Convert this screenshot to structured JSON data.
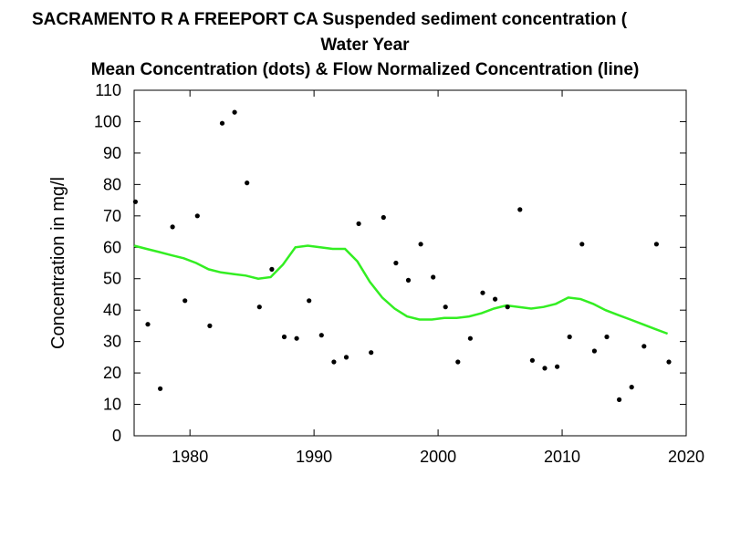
{
  "titles": {
    "line1": "SACRAMENTO R A FREEPORT CA   Suspended sediment concentration (",
    "line2": "Water Year",
    "line3": "Mean Concentration (dots) & Flow Normalized Concentration (line)"
  },
  "colors": {
    "line": "#33ee22",
    "dots": "#000000",
    "axis": "#000000"
  },
  "chart_data": {
    "type": "scatter",
    "title": "SACRAMENTO R A FREEPORT CA   Suspended sediment concentration (",
    "subtitle": "Mean Concentration (dots) & Flow Normalized Concentration (line)",
    "xlabel": "Water Year",
    "ylabel": "Concentration in mg/l",
    "xlim": [
      1975.5,
      2020
    ],
    "ylim": [
      0,
      110
    ],
    "xticks": [
      1980,
      1990,
      2000,
      2010,
      2020
    ],
    "yticks": [
      0,
      10,
      20,
      30,
      40,
      50,
      60,
      70,
      80,
      90,
      100,
      110
    ],
    "grid": false,
    "series": [
      {
        "type": "scatter",
        "x": [
          1975.6,
          1976.6,
          1977.6,
          1978.6,
          1979.6,
          1980.6,
          1981.6,
          1982.6,
          1983.6,
          1984.6,
          1985.6,
          1986.6,
          1987.6,
          1988.6,
          1989.6,
          1990.6,
          1991.6,
          1992.6,
          1993.6,
          1994.6,
          1995.6,
          1996.6,
          1997.6,
          1998.6,
          1999.6,
          2000.6,
          2001.6,
          2002.6,
          2003.6,
          2004.6,
          2005.6,
          2006.6,
          2007.6,
          2008.6,
          2009.6,
          2010.6,
          2011.6,
          2012.6,
          2013.6,
          2014.6,
          2015.6,
          2016.6,
          2017.6,
          2018.6
        ],
        "y": [
          74.5,
          35.5,
          15,
          66.5,
          43,
          70,
          35,
          99.5,
          103,
          80.5,
          41,
          53,
          31.5,
          31,
          43,
          32,
          23.5,
          25,
          67.5,
          26.5,
          69.5,
          55,
          49.5,
          61,
          50.5,
          41,
          23.5,
          31,
          45.5,
          43.5,
          41,
          72,
          24,
          21.5,
          22,
          31.5,
          61,
          27,
          31.5,
          11.5,
          15.5,
          28.5,
          61,
          23.5
        ]
      },
      {
        "type": "line",
        "x": [
          1975.5,
          1976.5,
          1977.5,
          1978.5,
          1979.5,
          1980.5,
          1981.5,
          1982.5,
          1983.5,
          1984.5,
          1985.5,
          1986.5,
          1987.5,
          1988.5,
          1989.5,
          1990.5,
          1991.5,
          1992.5,
          1993.5,
          1994.5,
          1995.5,
          1996.5,
          1997.5,
          1998.5,
          1999.5,
          2000.5,
          2001.5,
          2002.5,
          2003.5,
          2004.5,
          2005.5,
          2006.5,
          2007.5,
          2008.5,
          2009.5,
          2010.5,
          2011.5,
          2012.5,
          2013.5,
          2014.5,
          2015.5,
          2016.5,
          2017.5,
          2018.5
        ],
        "y": [
          60.5,
          59.5,
          58.5,
          57.5,
          56.5,
          55,
          53,
          52,
          51.5,
          51,
          50,
          50.5,
          54.5,
          60,
          60.5,
          60,
          59.5,
          59.5,
          55.5,
          49,
          44,
          40.5,
          38,
          37,
          37,
          37.5,
          37.5,
          38,
          39,
          40.5,
          41.5,
          41,
          40.5,
          41,
          42,
          44,
          43.5,
          42,
          40,
          38.5,
          37,
          35.5,
          34,
          32.5
        ]
      }
    ]
  }
}
